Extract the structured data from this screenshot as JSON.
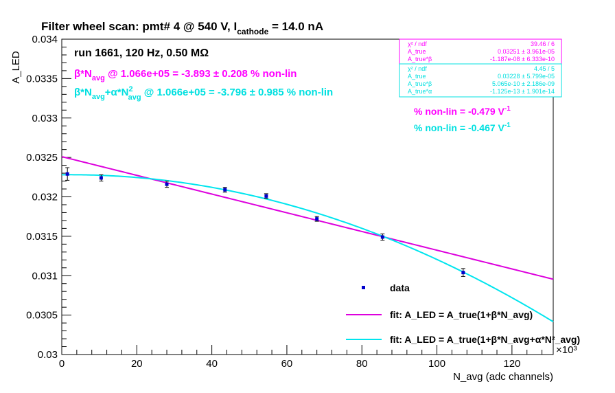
{
  "title": {
    "main": "Filter wheel scan: pmt#   4 @   540 V, I",
    "sub": "cathode",
    "tail": " = 14.0 nA"
  },
  "run_label": "run 1661, 120 Hz, 0.50 MΩ",
  "fit_summary": {
    "beta_prefix": "β*N",
    "beta_sub": "avg",
    "beta_text": " @ 1.066e+05 = -3.893 ± 0.208 % non-lin",
    "quad_prefix": "β*N",
    "quad_sub1": "avg",
    "quad_mid": "+α*N",
    "quad_sup": "2",
    "quad_sub2": "avg",
    "quad_text": " @ 1.066e+05 = -3.796 ± 0.985 % non-lin"
  },
  "nonlin_per_volt": {
    "linear_text": "% non-lin = -0.479 V",
    "linear_sup": "-1",
    "quad_text": "% non-lin = -0.467 V",
    "quad_sup": "-1"
  },
  "stats_boxes": [
    {
      "color": "#ff00ff",
      "rows": [
        {
          "label": "χ² / ndf",
          "value": "39.46 / 6"
        },
        {
          "label": "A_true",
          "value": "0.03251 ± 3.961e-05"
        },
        {
          "label": "A_true*β",
          "value": "-1.187e-08 ± 6.333e-10"
        }
      ]
    },
    {
      "color": "#00e0e0",
      "rows": [
        {
          "label": "χ² / ndf",
          "value": "4.45 / 5"
        },
        {
          "label": "A_true",
          "value": "0.03228 ± 5.799e-05"
        },
        {
          "label": "A_true*β",
          "value": "5.065e-10 ± 2.186e-09"
        },
        {
          "label": "A_true*α",
          "value": "-1.125e-13 ± 1.901e-14"
        }
      ]
    }
  ],
  "legend": {
    "data_label": "data",
    "fit1_label": "fit: A_LED = A_true(1+β*N_avg)",
    "fit2_label": "fit: A_LED = A_true(1+β*N_avg+α*N²_avg)"
  },
  "colors": {
    "data": "#0000cc",
    "linear_fit": "#dd00dd",
    "quadratic_fit": "#00e5ee",
    "text_magenta": "#ff00ff",
    "text_cyan": "#00e0e0"
  },
  "chart_data": {
    "type": "scatter",
    "xlabel": "N_avg (adc channels)",
    "ylabel": "A_LED",
    "x_multiplier": "×10³",
    "xlim": [
      0,
      131000
    ],
    "ylim": [
      0.03,
      0.034
    ],
    "x_ticks": [
      0,
      20000,
      40000,
      60000,
      80000,
      100000,
      120000
    ],
    "x_tick_labels": [
      "0",
      "20",
      "40",
      "60",
      "80",
      "100",
      "120"
    ],
    "y_ticks": [
      0.03,
      0.0305,
      0.031,
      0.0315,
      0.032,
      0.0325,
      0.033,
      0.0335,
      0.034
    ],
    "y_tick_labels": [
      "0.03",
      "0.0305",
      "0.031",
      "0.0315",
      "0.032",
      "0.0325",
      "0.033",
      "0.0335",
      "0.034"
    ],
    "grid": false,
    "series": [
      {
        "name": "data",
        "x": [
          1500,
          10500,
          28000,
          43500,
          54500,
          68000,
          85500,
          107000
        ],
        "y": [
          0.03229,
          0.03224,
          0.03216,
          0.03209,
          0.03201,
          0.03172,
          0.03149,
          0.03104
        ],
        "yerr": [
          8e-05,
          4e-05,
          4e-05,
          3e-05,
          3e-05,
          3e-05,
          4e-05,
          5e-05
        ]
      }
    ],
    "fits": [
      {
        "name": "linear",
        "A_true": 0.03251,
        "A_true_beta": -1.187e-08,
        "x_range": [
          0,
          131000
        ]
      },
      {
        "name": "quadratic",
        "A_true": 0.03228,
        "A_true_beta": 5.065e-10,
        "A_true_alpha": -1.125e-13,
        "x_range": [
          0,
          131000
        ]
      }
    ]
  }
}
